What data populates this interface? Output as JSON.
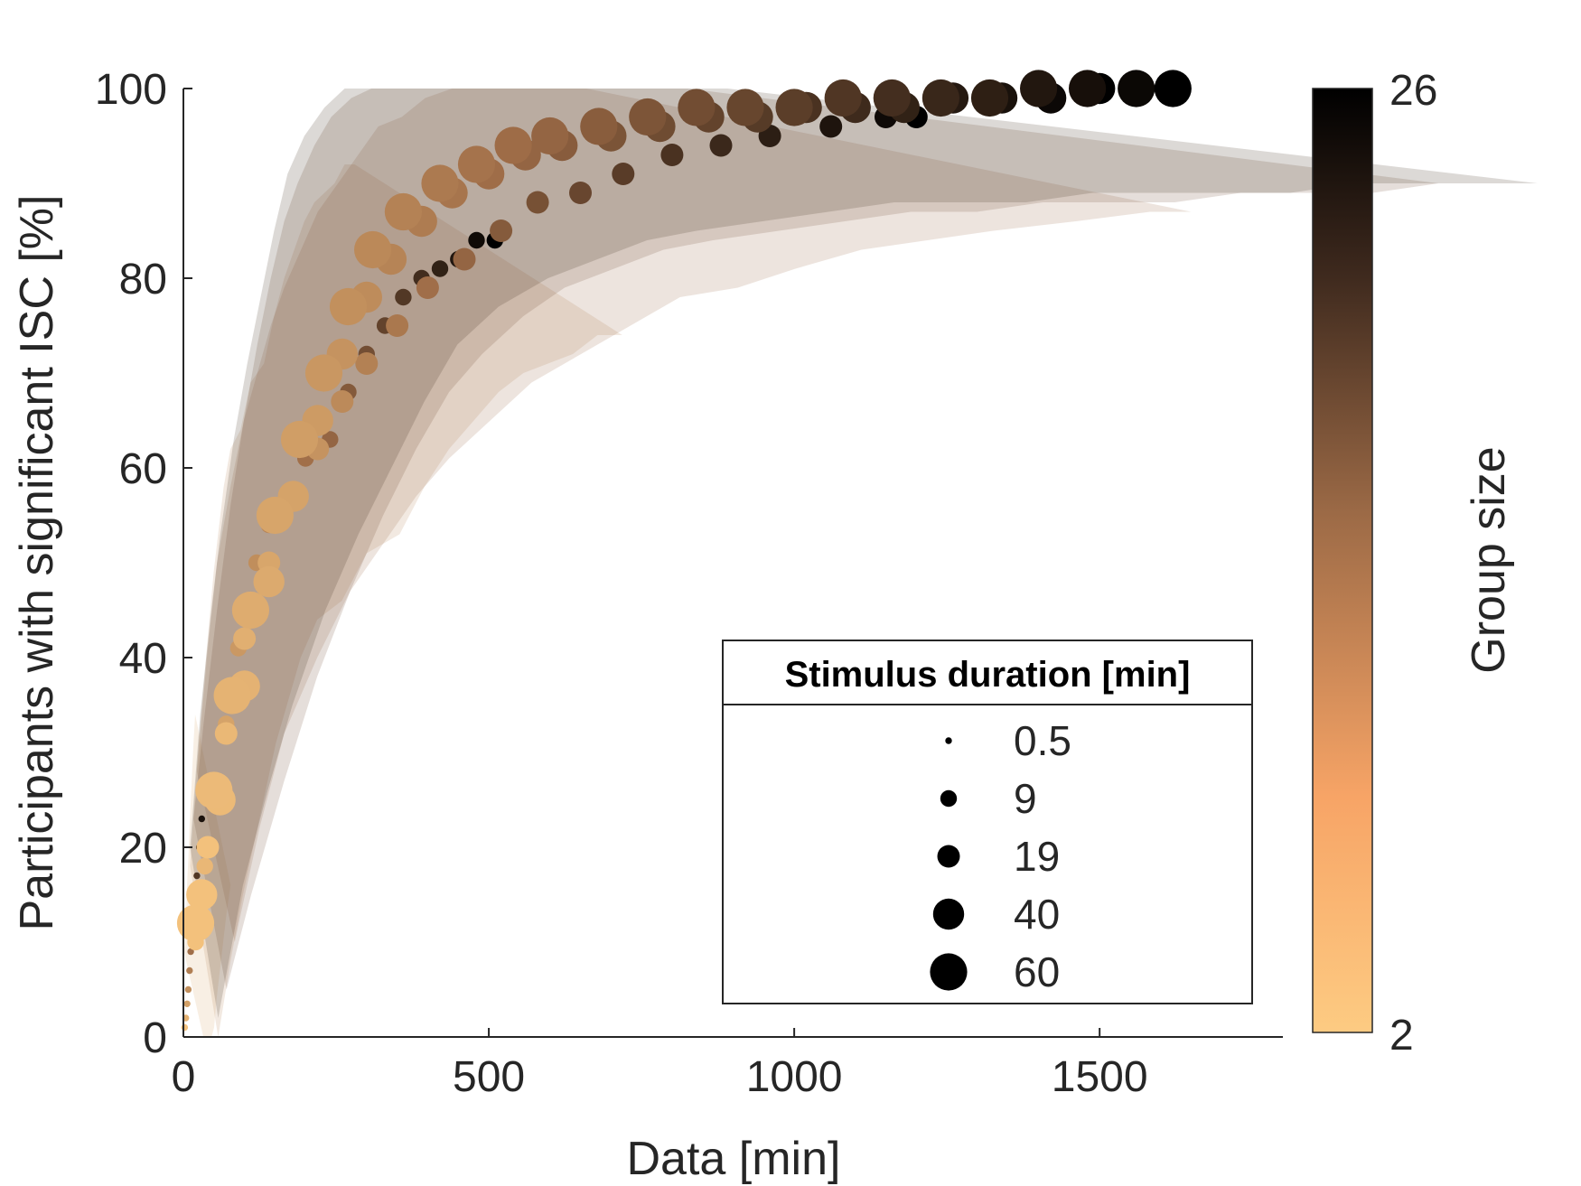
{
  "chart_data": {
    "type": "scatter",
    "title": "",
    "xlabel": "Data [min]",
    "ylabel": "Participants with significant ISC [%]",
    "xlim": [
      0,
      1800
    ],
    "ylim": [
      0,
      100
    ],
    "xticks": [
      0,
      500,
      1000,
      1500
    ],
    "xtick_labels": [
      "0",
      "500",
      "1000",
      "1500"
    ],
    "yticks": [
      0,
      20,
      40,
      60,
      80,
      100
    ],
    "ytick_labels": [
      "0",
      "20",
      "40",
      "60",
      "80",
      "100"
    ],
    "grid": false,
    "colorbar": {
      "label": "Group size",
      "min": 2,
      "max": 26,
      "min_label": "2",
      "max_label": "26",
      "color_low": "#FDCB82",
      "color_mid": "#9C6A46",
      "color_high": "#000000"
    },
    "size_legend": {
      "title": "Stimulus duration [min]",
      "placement": "lower-right",
      "entries": [
        {
          "label": "0.5",
          "value": 0.5
        },
        {
          "label": "9",
          "value": 9
        },
        {
          "label": "19",
          "value": 19
        },
        {
          "label": "40",
          "value": 40
        },
        {
          "label": "60",
          "value": 60
        }
      ]
    },
    "series": [
      {
        "duration": 0.5,
        "points": [
          [
            2,
            1
          ],
          [
            4,
            2
          ],
          [
            6,
            3.5
          ],
          [
            8,
            5
          ],
          [
            10,
            7
          ],
          [
            12,
            9
          ],
          [
            15,
            11
          ],
          [
            18,
            14
          ],
          [
            22,
            17
          ],
          [
            26,
            20
          ],
          [
            30,
            23
          ],
          [
            35,
            26
          ]
        ]
      },
      {
        "duration": 9,
        "points": [
          [
            20,
            10
          ],
          [
            35,
            18
          ],
          [
            50,
            25
          ],
          [
            70,
            33
          ],
          [
            90,
            41
          ],
          [
            120,
            50
          ],
          [
            140,
            54
          ],
          [
            170,
            56
          ],
          [
            200,
            61
          ],
          [
            240,
            63
          ],
          [
            270,
            68
          ],
          [
            300,
            72
          ],
          [
            330,
            75
          ],
          [
            360,
            78
          ],
          [
            390,
            80
          ],
          [
            420,
            81
          ],
          [
            450,
            82
          ],
          [
            480,
            84
          ],
          [
            510,
            84
          ]
        ]
      },
      {
        "duration": 19,
        "points": [
          [
            40,
            20
          ],
          [
            70,
            32
          ],
          [
            100,
            42
          ],
          [
            140,
            50
          ],
          [
            180,
            57
          ],
          [
            220,
            62
          ],
          [
            260,
            67
          ],
          [
            300,
            71
          ],
          [
            350,
            75
          ],
          [
            400,
            79
          ],
          [
            460,
            82
          ],
          [
            520,
            85
          ],
          [
            580,
            88
          ],
          [
            650,
            89
          ],
          [
            720,
            91
          ],
          [
            800,
            93
          ],
          [
            880,
            94
          ],
          [
            960,
            95
          ],
          [
            1060,
            96
          ],
          [
            1150,
            97
          ],
          [
            1200,
            97
          ]
        ]
      },
      {
        "duration": 40,
        "points": [
          [
            30,
            15
          ],
          [
            60,
            25
          ],
          [
            100,
            37
          ],
          [
            140,
            48
          ],
          [
            180,
            57
          ],
          [
            220,
            65
          ],
          [
            260,
            72
          ],
          [
            300,
            78
          ],
          [
            340,
            82
          ],
          [
            390,
            86
          ],
          [
            440,
            89
          ],
          [
            500,
            91
          ],
          [
            560,
            93
          ],
          [
            620,
            94
          ],
          [
            700,
            95
          ],
          [
            780,
            96
          ],
          [
            860,
            97
          ],
          [
            940,
            97
          ],
          [
            1020,
            98
          ],
          [
            1100,
            98
          ],
          [
            1180,
            98
          ],
          [
            1260,
            99
          ],
          [
            1340,
            99
          ],
          [
            1420,
            99
          ],
          [
            1500,
            100
          ]
        ]
      },
      {
        "duration": 60,
        "points": [
          [
            20,
            12
          ],
          [
            50,
            26
          ],
          [
            80,
            36
          ],
          [
            110,
            45
          ],
          [
            150,
            55
          ],
          [
            190,
            63
          ],
          [
            230,
            70
          ],
          [
            270,
            77
          ],
          [
            310,
            83
          ],
          [
            360,
            87
          ],
          [
            420,
            90
          ],
          [
            480,
            92
          ],
          [
            540,
            94
          ],
          [
            600,
            95
          ],
          [
            680,
            96
          ],
          [
            760,
            97
          ],
          [
            840,
            98
          ],
          [
            920,
            98
          ],
          [
            1000,
            98
          ],
          [
            1080,
            99
          ],
          [
            1160,
            99
          ],
          [
            1240,
            99
          ],
          [
            1320,
            99
          ],
          [
            1400,
            100
          ],
          [
            1480,
            100
          ],
          [
            1560,
            100
          ],
          [
            1620,
            100
          ]
        ]
      }
    ]
  }
}
